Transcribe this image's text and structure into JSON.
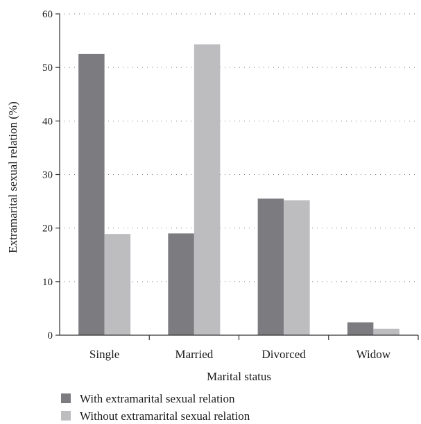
{
  "chart_data": {
    "type": "bar",
    "title": "",
    "xlabel": "Marital status",
    "ylabel": "Extramarital sexual relation (%)",
    "ylim": [
      0,
      60
    ],
    "yticks": [
      0,
      10,
      20,
      30,
      40,
      50,
      60
    ],
    "grid": true,
    "legend_position": "bottom-left",
    "categories": [
      "Single",
      "Married",
      "Divorced",
      "Widow"
    ],
    "series": [
      {
        "name": "With extramarital sexual relation",
        "color": "#7c7c80",
        "values": [
          52.5,
          19.0,
          25.5,
          2.4
        ]
      },
      {
        "name": "Without extramarital sexual relation",
        "color": "#bdbdc0",
        "values": [
          18.9,
          54.3,
          25.2,
          1.2
        ]
      }
    ]
  }
}
